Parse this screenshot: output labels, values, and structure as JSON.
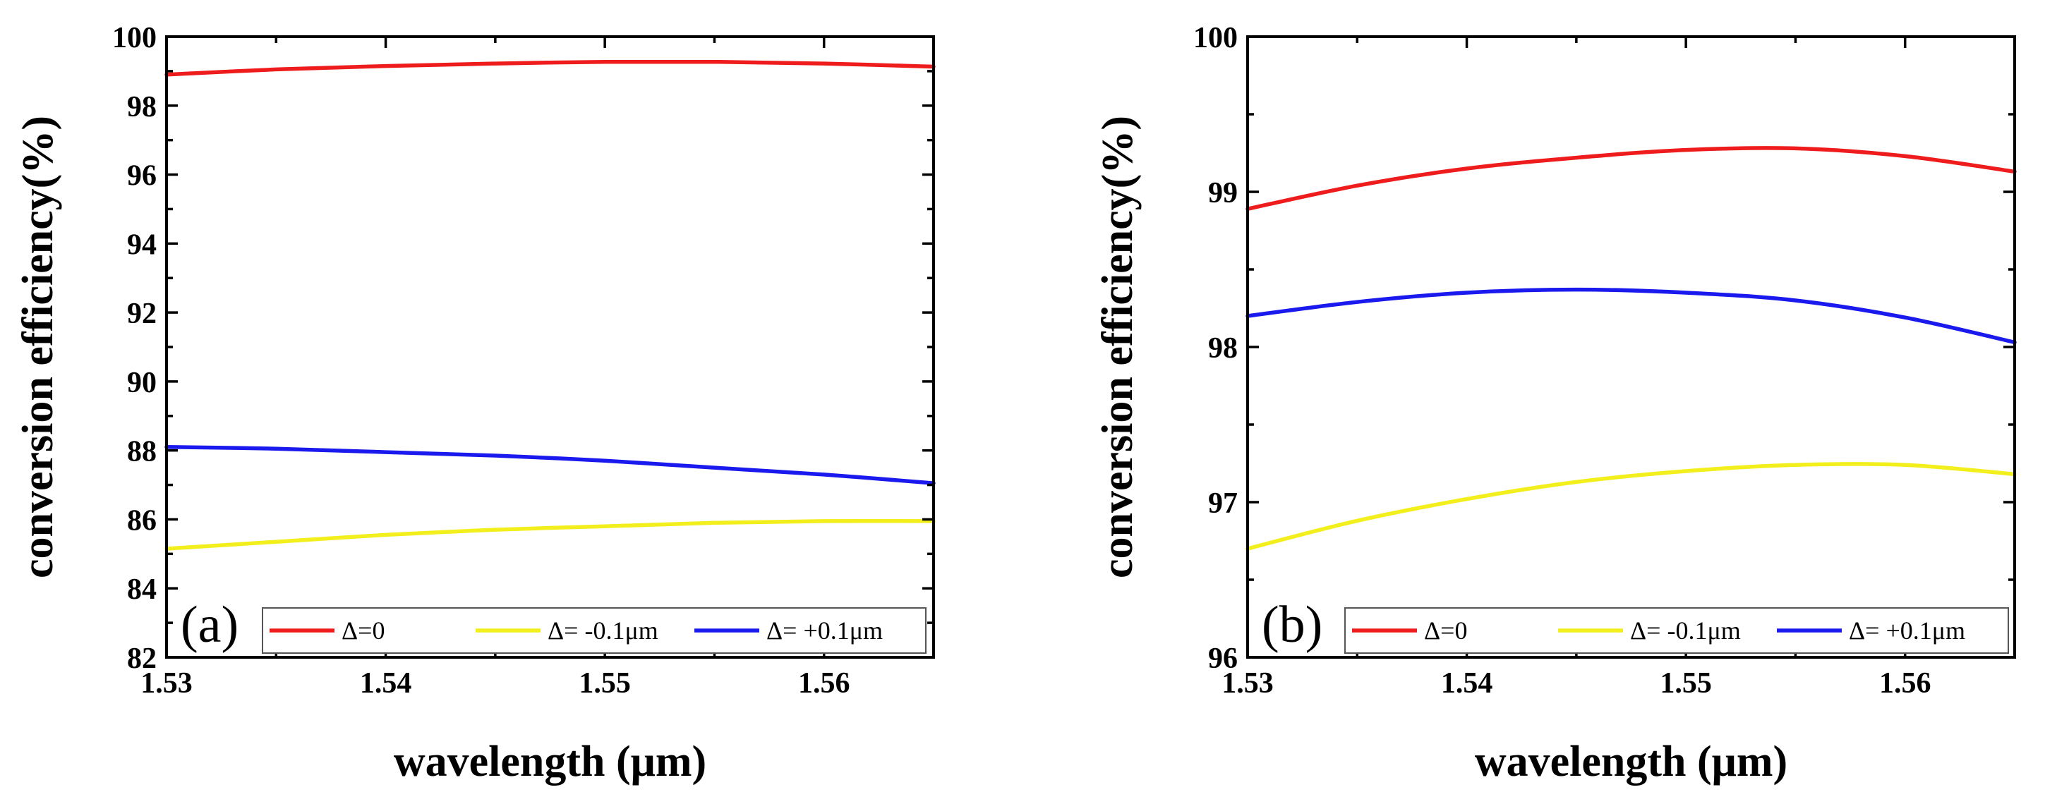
{
  "chart_data": [
    {
      "type": "line",
      "panel_label": "(a)",
      "xlabel": "wavelength (μm)",
      "ylabel": "conversion efficiency(%)",
      "xlim": [
        1.53,
        1.565
      ],
      "ylim": [
        82,
        100
      ],
      "xticks": [
        1.53,
        1.54,
        1.55,
        1.56
      ],
      "xtick_labels": [
        "1.53",
        "1.54",
        "1.55",
        "1.56"
      ],
      "yticks": [
        82,
        84,
        86,
        88,
        90,
        92,
        94,
        96,
        98,
        100
      ],
      "ytick_labels": [
        "82",
        "84",
        "86",
        "88",
        "90",
        "92",
        "94",
        "96",
        "98",
        "100"
      ],
      "legend_position": "bottom-right",
      "grid": false,
      "series": [
        {
          "name": "Δ=0",
          "color": "#ee1c1c",
          "x": [
            1.53,
            1.535,
            1.54,
            1.545,
            1.55,
            1.555,
            1.56,
            1.565
          ],
          "y": [
            98.9,
            99.05,
            99.15,
            99.22,
            99.27,
            99.27,
            99.22,
            99.13
          ]
        },
        {
          "name": "Δ= -0.1μm",
          "color": "#f2ef1c",
          "x": [
            1.53,
            1.535,
            1.54,
            1.545,
            1.55,
            1.555,
            1.56,
            1.565
          ],
          "y": [
            85.15,
            85.35,
            85.55,
            85.7,
            85.8,
            85.9,
            85.95,
            85.95
          ]
        },
        {
          "name": "Δ= +0.1μm",
          "color": "#1a1aee",
          "x": [
            1.53,
            1.535,
            1.54,
            1.545,
            1.55,
            1.555,
            1.56,
            1.565
          ],
          "y": [
            88.1,
            88.05,
            87.95,
            87.85,
            87.7,
            87.5,
            87.3,
            87.05
          ]
        }
      ]
    },
    {
      "type": "line",
      "panel_label": "(b)",
      "xlabel": "wavelength (μm)",
      "ylabel": "conversion efficiency(%)",
      "xlim": [
        1.53,
        1.565
      ],
      "ylim": [
        96,
        100
      ],
      "xticks": [
        1.53,
        1.54,
        1.55,
        1.56
      ],
      "xtick_labels": [
        "1.53",
        "1.54",
        "1.55",
        "1.56"
      ],
      "yticks": [
        96,
        97,
        98,
        99,
        100
      ],
      "ytick_labels": [
        "96",
        "97",
        "98",
        "99",
        "100"
      ],
      "legend_position": "bottom-right",
      "grid": false,
      "series": [
        {
          "name": "Δ=0",
          "color": "#ee1c1c",
          "x": [
            1.53,
            1.535,
            1.54,
            1.545,
            1.55,
            1.555,
            1.56,
            1.565
          ],
          "y": [
            98.89,
            99.04,
            99.15,
            99.22,
            99.27,
            99.28,
            99.23,
            99.13
          ]
        },
        {
          "name": "Δ= -0.1μm",
          "color": "#f2ef1c",
          "x": [
            1.53,
            1.535,
            1.54,
            1.545,
            1.55,
            1.555,
            1.56,
            1.565
          ],
          "y": [
            96.7,
            96.88,
            97.02,
            97.13,
            97.2,
            97.24,
            97.24,
            97.18
          ]
        },
        {
          "name": "Δ= +0.1μm",
          "color": "#1a1aee",
          "x": [
            1.53,
            1.535,
            1.54,
            1.545,
            1.55,
            1.555,
            1.56,
            1.565
          ],
          "y": [
            98.2,
            98.29,
            98.35,
            98.37,
            98.35,
            98.3,
            98.19,
            98.03
          ]
        }
      ]
    }
  ]
}
